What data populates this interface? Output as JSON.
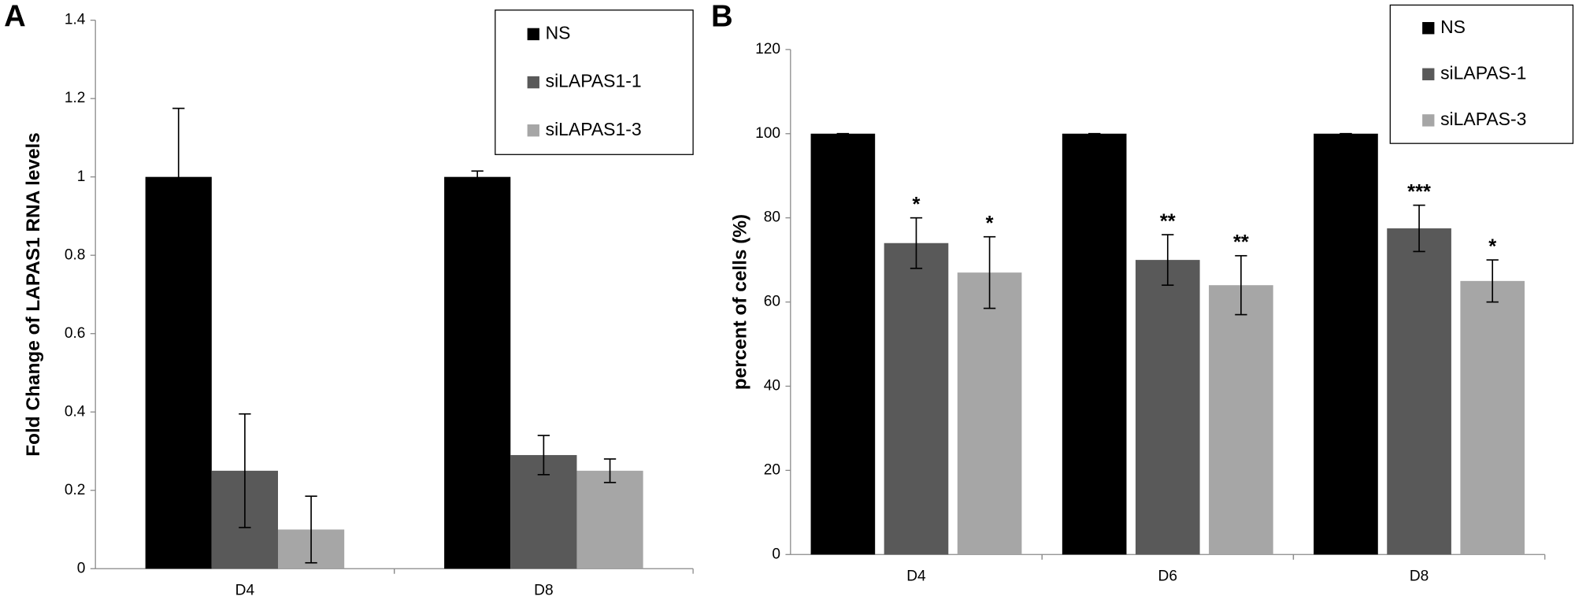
{
  "chart_data": [
    {
      "type": "bar",
      "panel_label": "A",
      "y_label": "Fold Change of LAPAS1 RNA levels",
      "categories": [
        "D4",
        "D8"
      ],
      "series": [
        {
          "name": "NS",
          "color": "#000000",
          "values": [
            1,
            1
          ],
          "errors": [
            0.175,
            0.015
          ]
        },
        {
          "name": "siLAPAS1-1",
          "color": "#595959",
          "values": [
            0.25,
            0.29
          ],
          "errors": [
            0.145,
            0.05
          ]
        },
        {
          "name": "siLAPAS1-3",
          "color": "#a6a6a6",
          "values": [
            0.1,
            0.25
          ],
          "errors": [
            0.085,
            0.03
          ]
        }
      ],
      "ylim": [
        0,
        1.4
      ],
      "yticks": [
        0,
        0.2,
        0.4,
        0.6,
        0.8,
        1,
        1.2,
        1.4
      ],
      "legend": "upper right"
    },
    {
      "type": "bar",
      "panel_label": "B",
      "y_label": "percent of cells (%)",
      "categories": [
        "D4",
        "D6",
        "D8"
      ],
      "series": [
        {
          "name": "NS",
          "color": "#000000",
          "values": [
            100,
            100,
            100
          ],
          "errors": [
            0,
            0,
            0
          ]
        },
        {
          "name": "siLAPAS-1",
          "color": "#595959",
          "values": [
            74,
            70,
            77.5
          ],
          "errors": [
            6,
            6,
            5.5
          ],
          "annotations": [
            "*",
            "**",
            "***"
          ]
        },
        {
          "name": "siLAPAS-3",
          "color": "#a6a6a6",
          "values": [
            67,
            64,
            65
          ],
          "errors": [
            8.5,
            7,
            5
          ],
          "annotations": [
            "*",
            "**",
            "*"
          ]
        }
      ],
      "ylim": [
        0,
        120
      ],
      "yticks": [
        0,
        20,
        40,
        60,
        80,
        100,
        120
      ],
      "legend": "upper right"
    }
  ]
}
